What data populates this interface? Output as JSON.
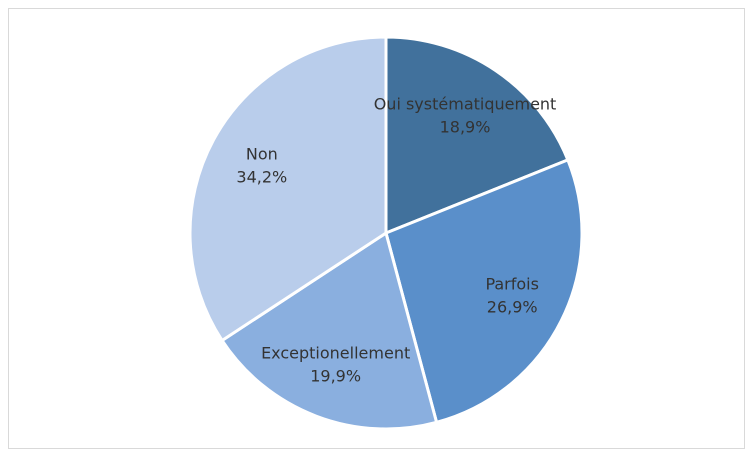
{
  "chart_data": {
    "type": "pie",
    "categories": [
      "Oui systématiquement",
      "Parfois",
      "Exceptionellement",
      "Non"
    ],
    "values": [
      18.9,
      26.9,
      19.9,
      34.2
    ],
    "value_labels": [
      "18,9%",
      "26,9%",
      "19,9%",
      "34,2%"
    ],
    "colors": [
      "#41719c",
      "#5a8fca",
      "#8aafdf",
      "#b9cdeb"
    ]
  }
}
